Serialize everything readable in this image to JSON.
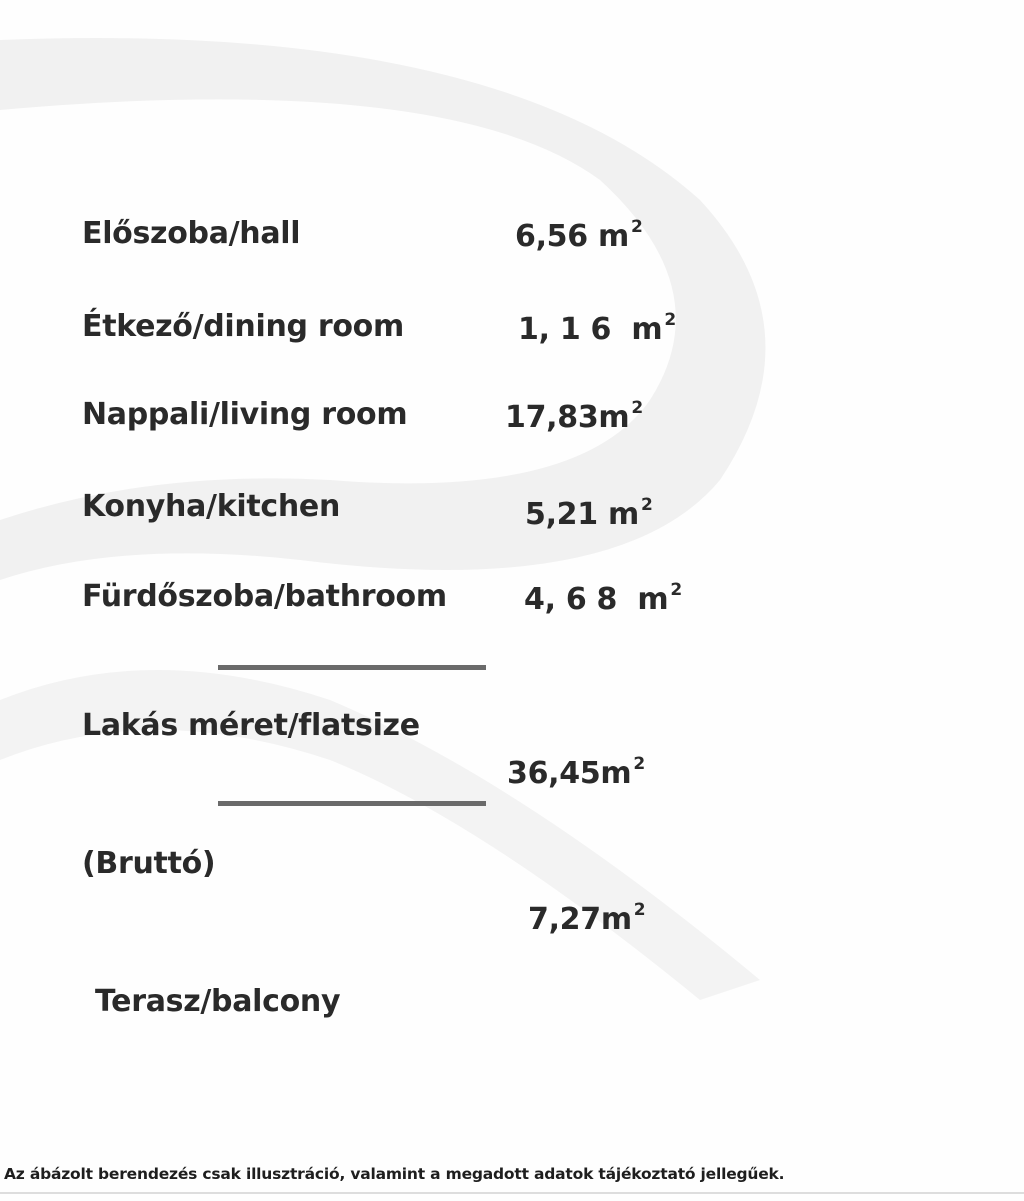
{
  "rooms": [
    {
      "label": "Előszoba/hall",
      "value": "6,56",
      "unit": "m",
      "exp": "2"
    },
    {
      "label": "Étkező/dining room",
      "value": "1, 1 6",
      "unit": "m",
      "exp": "2"
    },
    {
      "label": "Nappali/living room",
      "value": "17,83",
      "unit": "m",
      "exp": "2"
    },
    {
      "label": "Konyha/kitchen",
      "value": "5,21",
      "unit": "m",
      "exp": "2"
    },
    {
      "label": "Fürdőszoba/bathroom",
      "value": "4, 6 8",
      "unit": "m",
      "exp": "2"
    }
  ],
  "flat": {
    "label": "Lakás méret/flatsize",
    "value": "36,45",
    "unit": "m",
    "exp": "2",
    "note": "(Bruttó)"
  },
  "balcony": {
    "label": "Terasz/balcony",
    "value": "7,27",
    "unit": "m",
    "exp": "2"
  },
  "footer": "Az ábázolt berendezés csak illusztráció, valamint a megadott adatok tájékoztató jellegűek."
}
